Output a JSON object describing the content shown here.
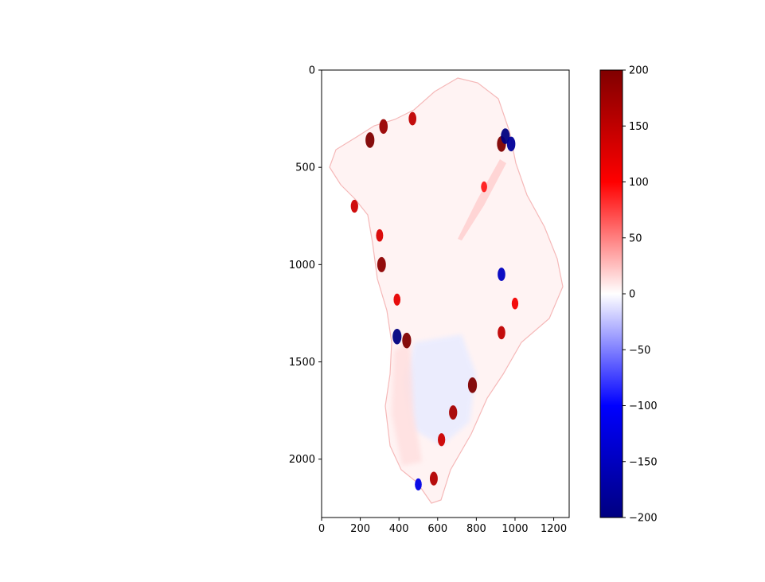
{
  "chart_data": {
    "type": "heatmap",
    "title": "",
    "xlabel": "",
    "ylabel": "",
    "xlim": [
      0,
      1280
    ],
    "ylim": [
      2300,
      0
    ],
    "x_ticks": [
      0,
      200,
      400,
      600,
      800,
      1000,
      1200
    ],
    "y_ticks": [
      0,
      500,
      1000,
      1500,
      2000
    ],
    "colorbar": {
      "colormap": "seismic",
      "range": [
        -200,
        200
      ],
      "ticks": [
        200,
        150,
        100,
        50,
        0,
        -50,
        -100,
        -150,
        -200
      ],
      "tick_labels": [
        "200",
        "150",
        "100",
        "50",
        "0",
        "−50",
        "−100",
        "−150",
        "−200"
      ]
    },
    "colors": {
      "max": "#800000",
      "high": "#ff0000",
      "zero": "#ffffff",
      "low": "#0000ff",
      "min": "#000080"
    },
    "hotspots": [
      {
        "x": 250,
        "y": 360,
        "value": 200
      },
      {
        "x": 320,
        "y": 290,
        "value": 180
      },
      {
        "x": 470,
        "y": 250,
        "value": 150
      },
      {
        "x": 930,
        "y": 380,
        "value": 200
      },
      {
        "x": 950,
        "y": 340,
        "value": -200
      },
      {
        "x": 980,
        "y": 380,
        "value": -180
      },
      {
        "x": 840,
        "y": 600,
        "value": 90
      },
      {
        "x": 170,
        "y": 700,
        "value": 140
      },
      {
        "x": 300,
        "y": 850,
        "value": 130
      },
      {
        "x": 310,
        "y": 1000,
        "value": 190
      },
      {
        "x": 390,
        "y": 1180,
        "value": 120
      },
      {
        "x": 440,
        "y": 1390,
        "value": 200
      },
      {
        "x": 390,
        "y": 1370,
        "value": -200
      },
      {
        "x": 930,
        "y": 1050,
        "value": -150
      },
      {
        "x": 1000,
        "y": 1200,
        "value": 110
      },
      {
        "x": 930,
        "y": 1350,
        "value": 150
      },
      {
        "x": 780,
        "y": 1620,
        "value": 200
      },
      {
        "x": 680,
        "y": 1760,
        "value": 170
      },
      {
        "x": 620,
        "y": 1900,
        "value": 140
      },
      {
        "x": 580,
        "y": 2100,
        "value": 160
      },
      {
        "x": 500,
        "y": 2130,
        "value": -120
      }
    ]
  }
}
